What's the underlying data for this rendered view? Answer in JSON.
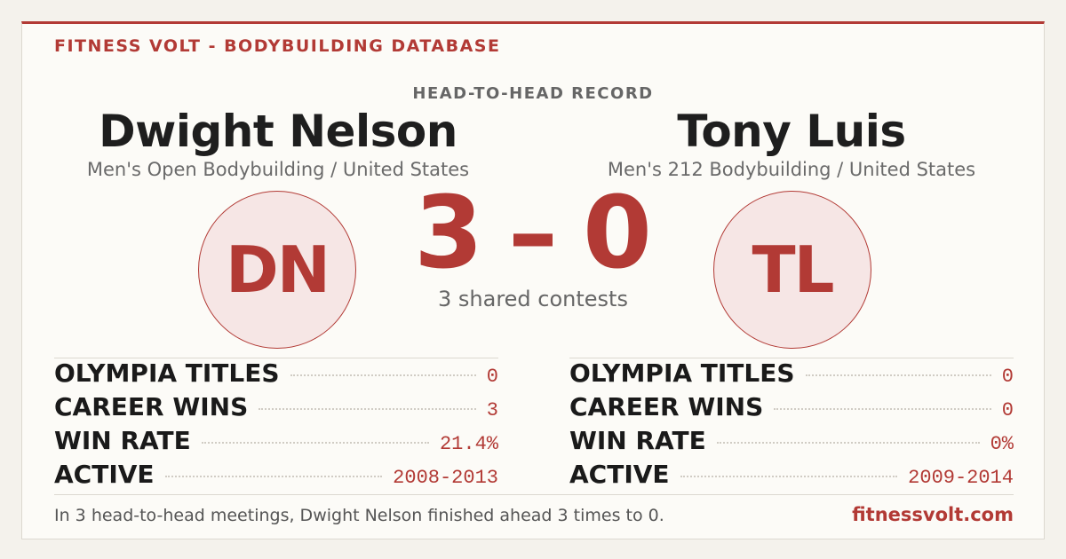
{
  "header": {
    "brand": "FITNESS VOLT - BODYBUILDING DATABASE"
  },
  "matchup": {
    "label": "HEAD-TO-HEAD RECORD"
  },
  "athletes": [
    {
      "name": "Dwight Nelson",
      "division": "Men's Open Bodybuilding / United States",
      "initials": "DN",
      "stats": [
        {
          "label": "OLYMPIA TITLES",
          "value": "0"
        },
        {
          "label": "CAREER WINS",
          "value": "3"
        },
        {
          "label": "WIN RATE",
          "value": "21.4%"
        },
        {
          "label": "ACTIVE",
          "value": "2008-2013"
        }
      ]
    },
    {
      "name": "Tony Luis",
      "division": "Men's 212 Bodybuilding / United States",
      "initials": "TL",
      "stats": [
        {
          "label": "OLYMPIA TITLES",
          "value": "0"
        },
        {
          "label": "CAREER WINS",
          "value": "0"
        },
        {
          "label": "WIN RATE",
          "value": "0%"
        },
        {
          "label": "ACTIVE",
          "value": "2009-2014"
        }
      ]
    }
  ],
  "score": {
    "left": "3",
    "separator": "–",
    "right": "0",
    "caption": "3 shared contests"
  },
  "footer": {
    "summary": "In 3 head-to-head meetings, Dwight Nelson finished ahead 3 times to 0.",
    "site": "fitnessvolt.com"
  }
}
